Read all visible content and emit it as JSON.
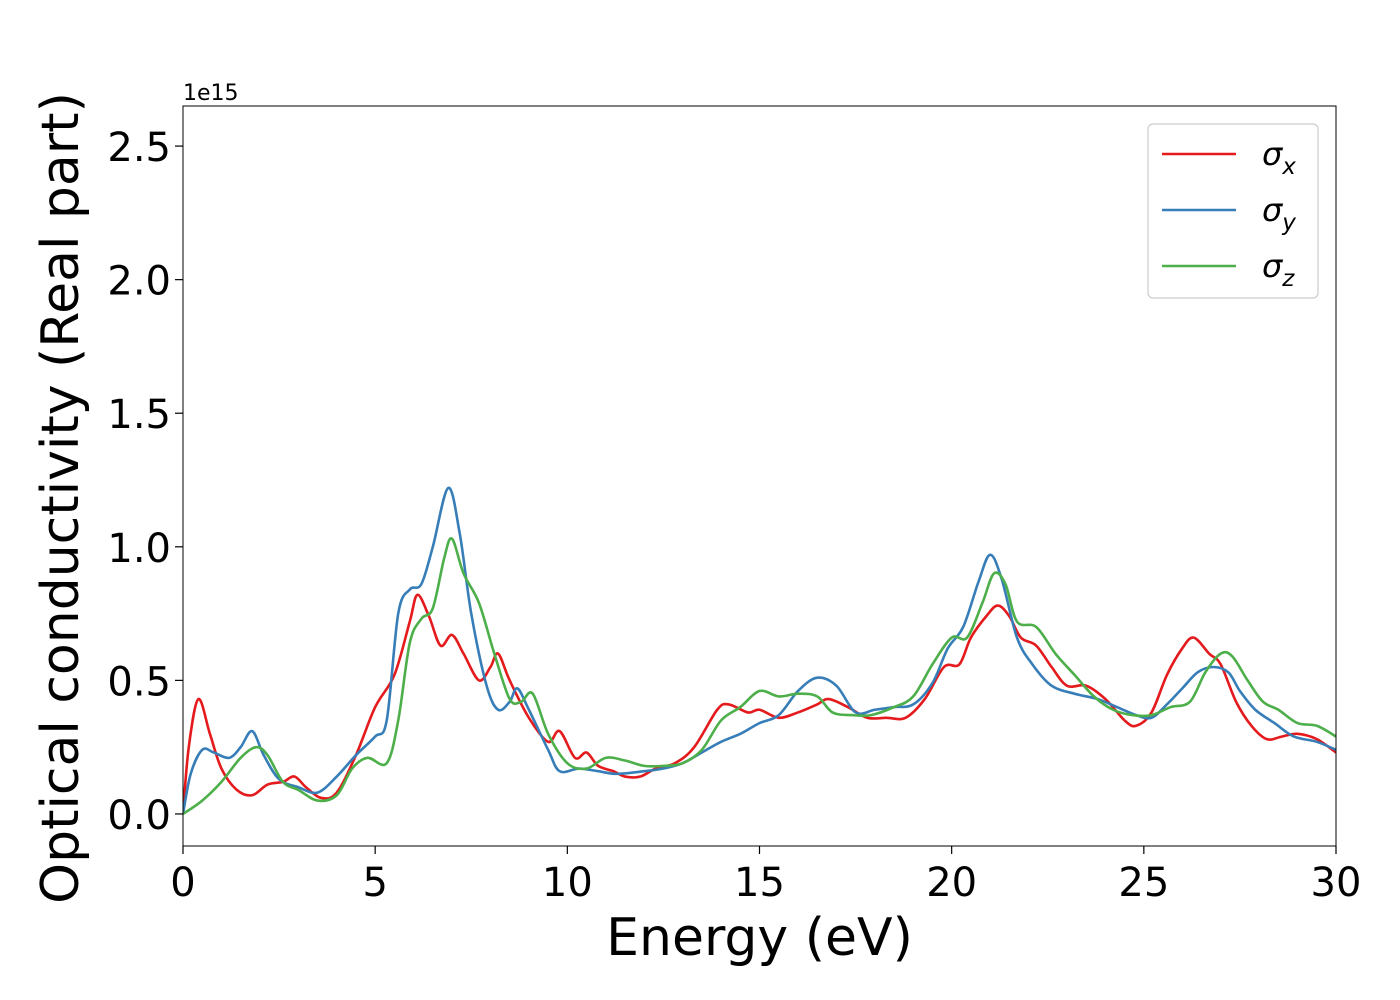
{
  "chart_data": {
    "type": "line",
    "title": "",
    "xlabel": "Energy (eV)",
    "ylabel": "Optical conductivity (Real part)",
    "offset_label": "1e15",
    "xlim": [
      0,
      30
    ],
    "ylim": [
      -0.12,
      2.65
    ],
    "xticks": [
      0,
      5,
      10,
      15,
      20,
      25,
      30
    ],
    "xtick_labels": [
      "0",
      "5",
      "10",
      "15",
      "20",
      "25",
      "30"
    ],
    "yticks": [
      0.0,
      0.5,
      1.0,
      1.5,
      2.0,
      2.5
    ],
    "ytick_labels": [
      "0.0",
      "0.5",
      "1.0",
      "1.5",
      "2.0",
      "2.5"
    ],
    "grid": false,
    "legend_position": "upper right",
    "series": [
      {
        "name": "σ_x",
        "legend_base": "σ",
        "legend_sub": "x",
        "color": "#e41a1c",
        "points": [
          [
            0,
            0.0
          ],
          [
            0.15,
            0.25
          ],
          [
            0.4,
            0.43
          ],
          [
            0.7,
            0.3
          ],
          [
            1.0,
            0.17
          ],
          [
            1.4,
            0.09
          ],
          [
            1.8,
            0.07
          ],
          [
            2.2,
            0.11
          ],
          [
            2.6,
            0.12
          ],
          [
            2.9,
            0.14
          ],
          [
            3.2,
            0.1
          ],
          [
            3.6,
            0.06
          ],
          [
            4.0,
            0.08
          ],
          [
            4.5,
            0.22
          ],
          [
            5.0,
            0.4
          ],
          [
            5.5,
            0.52
          ],
          [
            5.9,
            0.72
          ],
          [
            6.1,
            0.82
          ],
          [
            6.4,
            0.74
          ],
          [
            6.7,
            0.63
          ],
          [
            7.0,
            0.67
          ],
          [
            7.3,
            0.6
          ],
          [
            7.7,
            0.5
          ],
          [
            8.0,
            0.55
          ],
          [
            8.2,
            0.6
          ],
          [
            8.5,
            0.5
          ],
          [
            9.0,
            0.36
          ],
          [
            9.5,
            0.27
          ],
          [
            9.8,
            0.31
          ],
          [
            10.2,
            0.21
          ],
          [
            10.5,
            0.23
          ],
          [
            10.8,
            0.18
          ],
          [
            11.2,
            0.16
          ],
          [
            11.5,
            0.14
          ],
          [
            11.9,
            0.14
          ],
          [
            12.3,
            0.17
          ],
          [
            12.8,
            0.19
          ],
          [
            13.3,
            0.25
          ],
          [
            13.9,
            0.39
          ],
          [
            14.2,
            0.41
          ],
          [
            14.7,
            0.38
          ],
          [
            15.0,
            0.39
          ],
          [
            15.5,
            0.36
          ],
          [
            16.0,
            0.38
          ],
          [
            16.5,
            0.41
          ],
          [
            16.8,
            0.43
          ],
          [
            17.3,
            0.4
          ],
          [
            17.8,
            0.36
          ],
          [
            18.3,
            0.36
          ],
          [
            18.8,
            0.36
          ],
          [
            19.3,
            0.43
          ],
          [
            19.8,
            0.55
          ],
          [
            20.2,
            0.56
          ],
          [
            20.5,
            0.66
          ],
          [
            20.9,
            0.74
          ],
          [
            21.2,
            0.78
          ],
          [
            21.5,
            0.74
          ],
          [
            21.8,
            0.66
          ],
          [
            22.2,
            0.63
          ],
          [
            22.6,
            0.55
          ],
          [
            23.0,
            0.48
          ],
          [
            23.5,
            0.48
          ],
          [
            24.0,
            0.43
          ],
          [
            24.5,
            0.35
          ],
          [
            24.8,
            0.33
          ],
          [
            25.2,
            0.38
          ],
          [
            25.6,
            0.52
          ],
          [
            26.0,
            0.62
          ],
          [
            26.3,
            0.66
          ],
          [
            26.7,
            0.6
          ],
          [
            27.0,
            0.56
          ],
          [
            27.4,
            0.42
          ],
          [
            27.8,
            0.33
          ],
          [
            28.2,
            0.28
          ],
          [
            28.6,
            0.29
          ],
          [
            29.0,
            0.3
          ],
          [
            29.5,
            0.28
          ],
          [
            30.0,
            0.23
          ]
        ]
      },
      {
        "name": "σ_y",
        "legend_base": "σ",
        "legend_sub": "y",
        "color": "#377eb8",
        "points": [
          [
            0,
            0.0
          ],
          [
            0.2,
            0.15
          ],
          [
            0.5,
            0.24
          ],
          [
            0.8,
            0.23
          ],
          [
            1.2,
            0.21
          ],
          [
            1.5,
            0.25
          ],
          [
            1.8,
            0.31
          ],
          [
            2.1,
            0.22
          ],
          [
            2.5,
            0.13
          ],
          [
            3.0,
            0.1
          ],
          [
            3.5,
            0.08
          ],
          [
            4.0,
            0.14
          ],
          [
            4.5,
            0.22
          ],
          [
            5.0,
            0.29
          ],
          [
            5.3,
            0.35
          ],
          [
            5.6,
            0.75
          ],
          [
            5.9,
            0.84
          ],
          [
            6.2,
            0.86
          ],
          [
            6.5,
            1.0
          ],
          [
            6.9,
            1.22
          ],
          [
            7.2,
            1.05
          ],
          [
            7.5,
            0.75
          ],
          [
            7.9,
            0.48
          ],
          [
            8.2,
            0.39
          ],
          [
            8.5,
            0.42
          ],
          [
            8.7,
            0.47
          ],
          [
            9.0,
            0.39
          ],
          [
            9.5,
            0.24
          ],
          [
            9.8,
            0.16
          ],
          [
            10.3,
            0.17
          ],
          [
            10.8,
            0.16
          ],
          [
            11.3,
            0.15
          ],
          [
            12.0,
            0.16
          ],
          [
            12.5,
            0.17
          ],
          [
            13.0,
            0.19
          ],
          [
            13.5,
            0.23
          ],
          [
            14.0,
            0.27
          ],
          [
            14.5,
            0.3
          ],
          [
            15.0,
            0.34
          ],
          [
            15.5,
            0.37
          ],
          [
            16.0,
            0.46
          ],
          [
            16.5,
            0.51
          ],
          [
            17.0,
            0.48
          ],
          [
            17.5,
            0.38
          ],
          [
            18.0,
            0.39
          ],
          [
            18.5,
            0.4
          ],
          [
            19.0,
            0.41
          ],
          [
            19.5,
            0.49
          ],
          [
            19.9,
            0.62
          ],
          [
            20.3,
            0.7
          ],
          [
            20.7,
            0.87
          ],
          [
            21.0,
            0.97
          ],
          [
            21.3,
            0.88
          ],
          [
            21.7,
            0.66
          ],
          [
            22.1,
            0.56
          ],
          [
            22.6,
            0.48
          ],
          [
            23.2,
            0.45
          ],
          [
            23.8,
            0.43
          ],
          [
            24.3,
            0.4
          ],
          [
            24.8,
            0.37
          ],
          [
            25.2,
            0.36
          ],
          [
            25.6,
            0.41
          ],
          [
            26.0,
            0.47
          ],
          [
            26.4,
            0.53
          ],
          [
            26.8,
            0.55
          ],
          [
            27.2,
            0.53
          ],
          [
            27.5,
            0.46
          ],
          [
            27.9,
            0.39
          ],
          [
            28.4,
            0.34
          ],
          [
            28.9,
            0.29
          ],
          [
            29.5,
            0.27
          ],
          [
            30.0,
            0.24
          ]
        ]
      },
      {
        "name": "σ_z",
        "legend_base": "σ",
        "legend_sub": "z",
        "color": "#4daf4a",
        "points": [
          [
            0,
            0.0
          ],
          [
            0.5,
            0.05
          ],
          [
            1.0,
            0.12
          ],
          [
            1.5,
            0.21
          ],
          [
            1.9,
            0.25
          ],
          [
            2.2,
            0.22
          ],
          [
            2.6,
            0.12
          ],
          [
            3.0,
            0.09
          ],
          [
            3.5,
            0.05
          ],
          [
            4.0,
            0.07
          ],
          [
            4.4,
            0.17
          ],
          [
            4.8,
            0.21
          ],
          [
            5.3,
            0.19
          ],
          [
            5.6,
            0.35
          ],
          [
            5.9,
            0.64
          ],
          [
            6.2,
            0.73
          ],
          [
            6.5,
            0.77
          ],
          [
            6.8,
            0.96
          ],
          [
            7.0,
            1.03
          ],
          [
            7.3,
            0.9
          ],
          [
            7.7,
            0.79
          ],
          [
            8.1,
            0.6
          ],
          [
            8.5,
            0.43
          ],
          [
            8.8,
            0.42
          ],
          [
            9.1,
            0.45
          ],
          [
            9.5,
            0.3
          ],
          [
            10.0,
            0.19
          ],
          [
            10.5,
            0.17
          ],
          [
            11.0,
            0.21
          ],
          [
            11.5,
            0.2
          ],
          [
            12.0,
            0.18
          ],
          [
            12.5,
            0.18
          ],
          [
            13.0,
            0.19
          ],
          [
            13.5,
            0.24
          ],
          [
            14.0,
            0.35
          ],
          [
            14.5,
            0.4
          ],
          [
            15.0,
            0.46
          ],
          [
            15.5,
            0.44
          ],
          [
            16.0,
            0.45
          ],
          [
            16.5,
            0.44
          ],
          [
            16.9,
            0.38
          ],
          [
            17.4,
            0.37
          ],
          [
            17.9,
            0.37
          ],
          [
            18.5,
            0.4
          ],
          [
            19.0,
            0.44
          ],
          [
            19.5,
            0.56
          ],
          [
            20.0,
            0.66
          ],
          [
            20.4,
            0.66
          ],
          [
            20.8,
            0.79
          ],
          [
            21.1,
            0.9
          ],
          [
            21.4,
            0.86
          ],
          [
            21.7,
            0.72
          ],
          [
            22.2,
            0.7
          ],
          [
            22.7,
            0.6
          ],
          [
            23.2,
            0.52
          ],
          [
            23.7,
            0.44
          ],
          [
            24.2,
            0.39
          ],
          [
            24.7,
            0.37
          ],
          [
            25.2,
            0.37
          ],
          [
            25.7,
            0.4
          ],
          [
            26.2,
            0.42
          ],
          [
            26.6,
            0.53
          ],
          [
            27.0,
            0.6
          ],
          [
            27.3,
            0.59
          ],
          [
            27.7,
            0.5
          ],
          [
            28.1,
            0.42
          ],
          [
            28.5,
            0.39
          ],
          [
            29.0,
            0.34
          ],
          [
            29.5,
            0.33
          ],
          [
            30.0,
            0.29
          ]
        ]
      }
    ]
  }
}
